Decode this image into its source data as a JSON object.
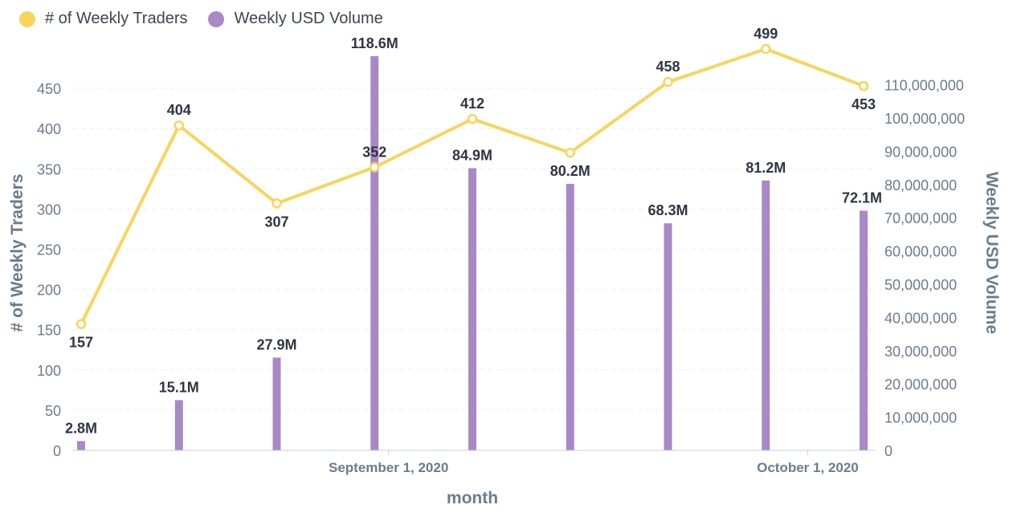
{
  "chart_data": {
    "type": "bar+line",
    "x": [
      "2020-08-10",
      "2020-08-17",
      "2020-08-24",
      "2020-08-31",
      "2020-09-07",
      "2020-09-14",
      "2020-09-21",
      "2020-09-28",
      "2020-10-05"
    ],
    "x_ticks": [
      "September 1, 2020",
      "October 1, 2020"
    ],
    "xlabel": "month",
    "series": [
      {
        "name": "# of Weekly Traders",
        "kind": "line",
        "axis": "left",
        "color": "#f9d45c",
        "values": [
          157,
          404,
          307,
          352,
          412,
          370,
          458,
          499,
          453
        ],
        "labels": [
          "157",
          "404",
          "307",
          "352",
          "412",
          "",
          "458",
          "499",
          "453"
        ]
      },
      {
        "name": "Weekly USD Volume",
        "kind": "bar",
        "axis": "right",
        "color": "#a989c5",
        "values": [
          2800000,
          15100000,
          27900000,
          118600000,
          84900000,
          80200000,
          68300000,
          81200000,
          72100000
        ],
        "labels": [
          "2.8M",
          "15.1M",
          "27.9M",
          "118.6M",
          "84.9M",
          "80.2M",
          "68.3M",
          "81.2M",
          "72.1M"
        ]
      }
    ],
    "y_left": {
      "label": "# of Weekly Traders",
      "ticks": [
        "0",
        "50",
        "100",
        "150",
        "200",
        "250",
        "300",
        "350",
        "400",
        "450"
      ]
    },
    "y_right": {
      "label": "Weekly USD Volume",
      "ticks": [
        "0",
        "10,000,000",
        "20,000,000",
        "30,000,000",
        "40,000,000",
        "50,000,000",
        "60,000,000",
        "70,000,000",
        "80,000,000",
        "90,000,000",
        "100,000,000",
        "110,000,000"
      ]
    },
    "legend": "top-left",
    "grid": true
  }
}
